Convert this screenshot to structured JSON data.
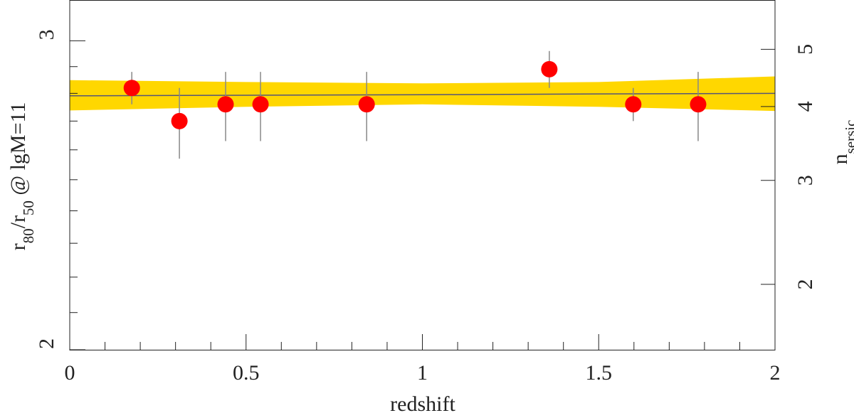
{
  "chart_data": {
    "type": "scatter",
    "xlabel": "redshift",
    "ylabel": [
      "r",
      "80",
      "/r",
      "50",
      " @ lgM=11"
    ],
    "y2label": [
      "n",
      "sersic"
    ],
    "xlim": [
      0,
      2
    ],
    "xticks": [
      0,
      0.5,
      1,
      1.5,
      2
    ],
    "xminorticks": [
      0.1,
      0.2,
      0.3,
      0.4,
      0.6,
      0.7,
      0.8,
      0.9,
      1.1,
      1.2,
      1.3,
      1.4,
      1.6,
      1.7,
      1.8,
      1.9
    ],
    "ylim": [
      2,
      3.165
    ],
    "yscale": "log",
    "yticks": [
      2,
      3
    ],
    "yminorticks": [
      2.1,
      2.2,
      2.3,
      2.4,
      2.5,
      2.6,
      2.7,
      2.8,
      2.9
    ],
    "y2lim": [
      1.55,
      6.06
    ],
    "y2scale": "log",
    "y2ticks": [
      2,
      3,
      4,
      5
    ],
    "series": [
      {
        "color": "#ff0000",
        "x": [
          0.176,
          0.311,
          0.442,
          0.541,
          0.842,
          1.36,
          1.598,
          1.782
        ],
        "values": [
          2.82,
          2.7,
          2.76,
          2.76,
          2.76,
          2.89,
          2.76,
          2.76
        ],
        "lower": [
          2.76,
          2.57,
          2.63,
          2.63,
          2.63,
          2.82,
          2.7,
          2.63
        ],
        "upper": [
          2.88,
          2.82,
          2.88,
          2.88,
          2.88,
          2.96,
          2.82,
          2.88
        ],
        "error_color": "#888888"
      }
    ],
    "fit": {
      "color": "#555577",
      "band_color": "#ffd700",
      "x": [
        0,
        0.5,
        1,
        1.5,
        2
      ],
      "values": [
        2.791,
        2.793,
        2.795,
        2.798,
        2.8
      ],
      "upper": [
        2.849,
        2.842,
        2.837,
        2.842,
        2.863
      ],
      "lower": [
        2.738,
        2.751,
        2.76,
        2.751,
        2.736
      ]
    }
  }
}
